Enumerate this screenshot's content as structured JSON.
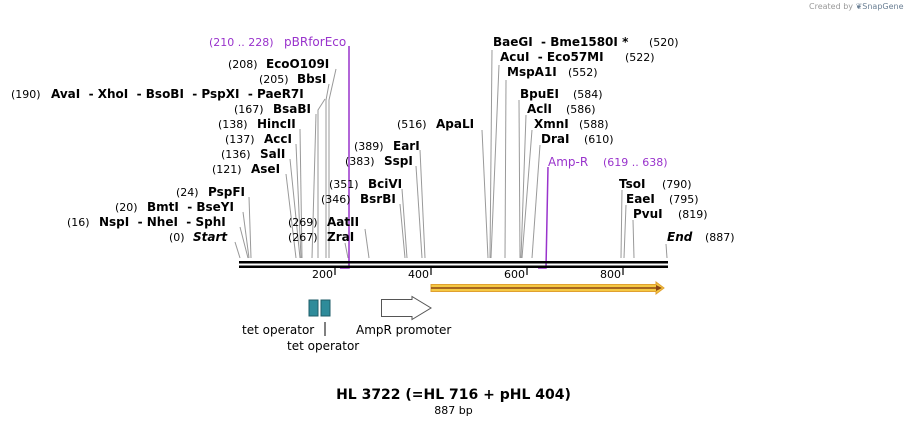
{
  "credit": {
    "prefix": "Created by",
    "brand": "SnapGene"
  },
  "title": "HL 3722 (=HL 716 + pHL 404)",
  "size": "887 bp",
  "sequence_length": 887,
  "ruler_ticks": [
    "200",
    "400",
    "600",
    "800"
  ],
  "enzymes": [
    {
      "pos": "(190)",
      "name": "AvaI  - XhoI  - BsoBI  - PspXI  - PaeR7I",
      "star": ""
    },
    {
      "pos": "(208)",
      "name": "EcoO109I",
      "star": ""
    },
    {
      "pos": "(205)",
      "name": "BbsI",
      "star": ""
    },
    {
      "pos": "(167)",
      "name": "BsaBI",
      "star": ""
    },
    {
      "pos": "(138)",
      "name": "HincII",
      "star": ""
    },
    {
      "pos": "(137)",
      "name": "AccI",
      "star": ""
    },
    {
      "pos": "(136)",
      "name": "SalI",
      "star": ""
    },
    {
      "pos": "(121)",
      "name": "AseI",
      "star": ""
    },
    {
      "pos": "(24)",
      "name": "PspFI",
      "star": ""
    },
    {
      "pos": "(20)",
      "name": "BmtI  - BseYI",
      "star": ""
    },
    {
      "pos": "(16)",
      "name": "NspI  - NheI  - SphI",
      "star": ""
    },
    {
      "pos": "(0)",
      "name": "Start",
      "star": ""
    },
    {
      "pos": "(389)",
      "name": "EarI",
      "star": ""
    },
    {
      "pos": "(383)",
      "name": "SspI",
      "star": ""
    },
    {
      "pos": "(351)",
      "name": "BciVI",
      "star": ""
    },
    {
      "pos": "(346)",
      "name": "BsrBI",
      "star": ""
    },
    {
      "pos": "(269)",
      "name": "AatII",
      "star": ""
    },
    {
      "pos": "(267)",
      "name": "ZraI",
      "star": ""
    },
    {
      "pos": "(516)",
      "name": "ApaLI",
      "star": ""
    },
    {
      "pos": "(520)",
      "name": "BaeGI  - Bme1580I",
      "star": "*"
    },
    {
      "pos": "(522)",
      "name": "AcuI  - Eco57MI",
      "star": ""
    },
    {
      "pos": "(552)",
      "name": "MspA1I",
      "star": ""
    },
    {
      "pos": "(584)",
      "name": "BpuEI",
      "star": ""
    },
    {
      "pos": "(586)",
      "name": "AclI",
      "star": ""
    },
    {
      "pos": "(588)",
      "name": "XmnI",
      "star": ""
    },
    {
      "pos": "(610)",
      "name": "DraI",
      "star": ""
    },
    {
      "pos": "(790)",
      "name": "TsoI",
      "star": ""
    },
    {
      "pos": "(795)",
      "name": "EaeI",
      "star": ""
    },
    {
      "pos": "(819)",
      "name": "PvuI",
      "star": ""
    },
    {
      "pos": "(887)",
      "name": "End",
      "star": ""
    }
  ],
  "primers": [
    {
      "name": "pBRforEco",
      "range": "(210 .. 228)"
    },
    {
      "name": "Amp-R",
      "range": "(619 .. 638)"
    }
  ],
  "features": {
    "tet_operator_1": "tet operator",
    "tet_operator_2": "tet operator",
    "ampr_promoter": "AmpR promoter"
  },
  "colors": {
    "primer": "#9933cc",
    "operator": "#2e8b9a",
    "orf_fill": "#f5c842",
    "orf_border": "#8b4513",
    "backbone": "#000000",
    "leader": "#999999"
  }
}
